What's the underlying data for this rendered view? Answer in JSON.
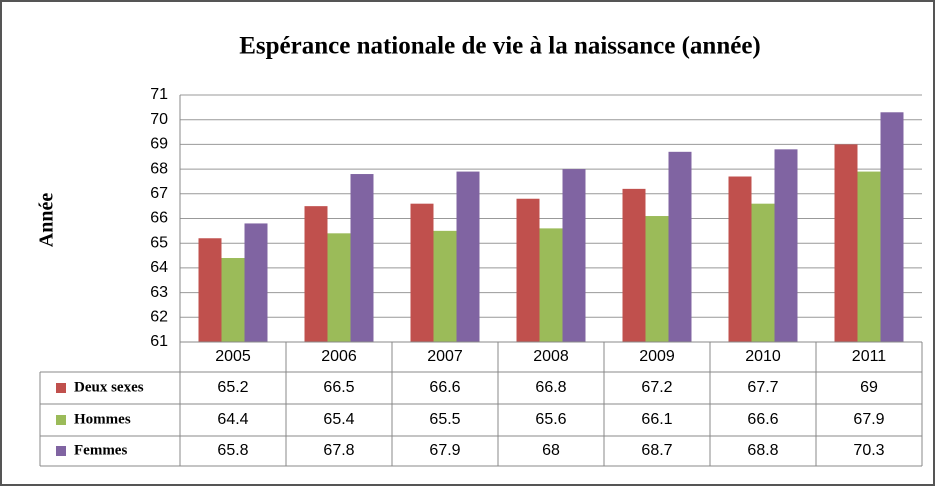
{
  "chart_data": {
    "type": "bar",
    "title": "Espérance nationale de vie à la naissance (année)",
    "y_label": "Année",
    "categories": [
      "2005",
      "2006",
      "2007",
      "2008",
      "2009",
      "2010",
      "2011"
    ],
    "series": [
      {
        "name": "Deux sexes",
        "color": "#c0504d",
        "values": [
          65.2,
          66.5,
          66.6,
          66.8,
          67.2,
          67.7,
          69
        ]
      },
      {
        "name": "Hommes",
        "color": "#9bbb59",
        "values": [
          64.4,
          65.4,
          65.5,
          65.6,
          66.1,
          66.6,
          67.9
        ]
      },
      {
        "name": "Femmes",
        "color": "#8064a2",
        "values": [
          65.8,
          67.8,
          67.9,
          68,
          68.7,
          68.8,
          70.3
        ]
      }
    ],
    "ylim": [
      61,
      71
    ],
    "yticks": [
      61,
      62,
      63,
      64,
      65,
      66,
      67,
      68,
      69,
      70,
      71
    ],
    "grid": true,
    "data_table": true
  }
}
